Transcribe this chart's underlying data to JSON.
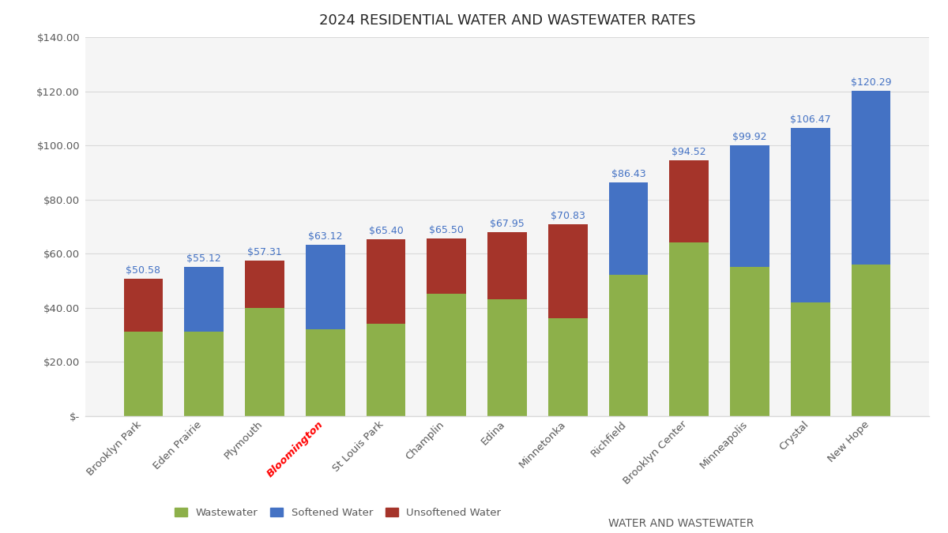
{
  "title": "2024 RESIDENTIAL WATER AND WASTEWATER RATES",
  "categories": [
    "Brooklyn Park",
    "Eden Prairie",
    "Plymouth",
    "Bloomington",
    "St Louis Park",
    "Champlin",
    "Edina",
    "Minnetonka",
    "Richfield",
    "Brooklyn Center",
    "Minneapolis",
    "Crystal",
    "New Hope"
  ],
  "totals": [
    50.58,
    55.12,
    57.31,
    63.12,
    65.4,
    65.5,
    67.95,
    70.83,
    86.43,
    94.52,
    99.92,
    106.47,
    120.29
  ],
  "wastewater": [
    31.0,
    31.0,
    40.0,
    32.0,
    34.0,
    45.0,
    43.0,
    36.0,
    52.0,
    64.0,
    55.0,
    42.0,
    56.0
  ],
  "softened_water": [
    0.0,
    24.12,
    0.0,
    31.12,
    0.0,
    0.0,
    0.0,
    0.0,
    34.43,
    0.0,
    44.92,
    64.47,
    64.29
  ],
  "unsoftened_water": [
    19.58,
    0.0,
    17.31,
    0.0,
    31.4,
    20.5,
    24.95,
    34.83,
    0.0,
    30.52,
    0.0,
    0.0,
    0.0
  ],
  "bloomington_index": 3,
  "color_wastewater": "#8DB04A",
  "color_softened": "#4472C4",
  "color_unsoftened": "#A5342A",
  "color_label": "#4472C4",
  "color_bloomington": "#FF0000",
  "color_grid": "#D9D9D9",
  "ylim": [
    0,
    140
  ],
  "ytick_step": 20,
  "background_color": "#FFFFFF",
  "plot_bg_color": "#F5F5F5",
  "legend_labels": [
    "Wastewater",
    "Softened Water",
    "Unsoftened Water",
    "WATER AND WASTEWATER"
  ],
  "label_fontsize": 9,
  "title_fontsize": 13,
  "tick_color": "#595959"
}
